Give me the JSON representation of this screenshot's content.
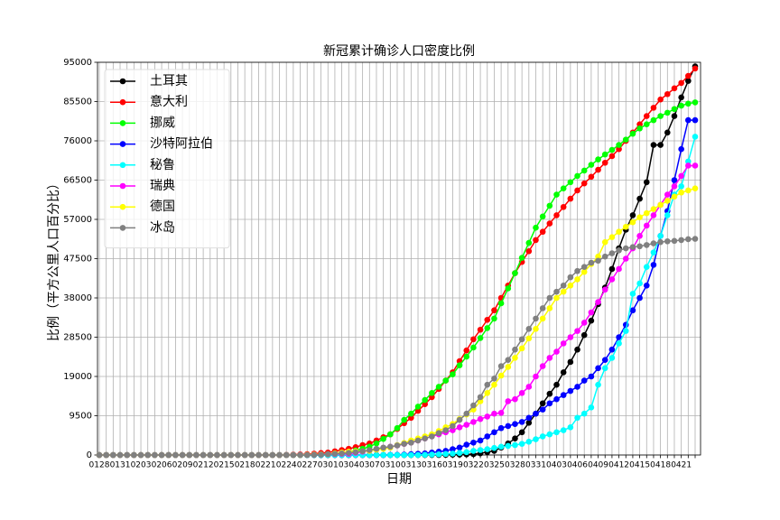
{
  "chart_data": {
    "type": "line",
    "title": "新冠累计确诊人口密度比例",
    "x_label": "日期",
    "y_label": "比例（平方公里人口百分比）",
    "categories": [
      "0128",
      null,
      null,
      "0131",
      null,
      null,
      "0203",
      null,
      null,
      "0206",
      null,
      null,
      "0209",
      null,
      null,
      "0212",
      null,
      null,
      "0215",
      null,
      null,
      "0218",
      null,
      null,
      "0221",
      null,
      null,
      "0224",
      null,
      null,
      "0227",
      null,
      null,
      "0301",
      null,
      null,
      "0304",
      null,
      null,
      "0307",
      null,
      null,
      "0310",
      null,
      null,
      "0313",
      null,
      null,
      "0316",
      null,
      null,
      "0319",
      null,
      null,
      "0322",
      null,
      null,
      "0325",
      null,
      null,
      "0328",
      null,
      null,
      "0331",
      null,
      null,
      "0403",
      null,
      null,
      "0406",
      null,
      null,
      "0409",
      null,
      null,
      "0412",
      null,
      null,
      "0415",
      null,
      null,
      "0418",
      null,
      null,
      "0421",
      null,
      null
    ],
    "ylim": [
      0,
      95000
    ],
    "yticks": [
      0,
      9500,
      19000,
      28500,
      38000,
      47500,
      57000,
      66500,
      76000,
      85500,
      95000
    ],
    "grid": true,
    "legend": "upper left",
    "series": [
      {
        "name": "土耳其",
        "color": "#000000",
        "values": [
          0,
          0,
          0,
          0,
          0,
          0,
          0,
          0,
          0,
          0,
          0,
          0,
          0,
          0,
          0,
          0,
          0,
          0,
          0,
          0,
          0,
          0,
          0,
          0,
          0,
          0,
          0,
          0,
          0,
          0,
          0,
          0,
          0,
          0,
          0,
          0,
          0,
          0,
          0,
          0,
          0,
          0,
          0,
          0,
          0,
          0,
          0,
          0,
          20,
          30,
          50,
          80,
          100,
          150,
          200,
          400,
          700,
          1000,
          1800,
          2800,
          4000,
          5500,
          7800,
          10000,
          12500,
          14800,
          17000,
          20000,
          22500,
          25500,
          29000,
          32500,
          36500,
          40500,
          45000,
          50000,
          54500,
          58000,
          62000,
          66000,
          75000,
          75000,
          78000,
          82000,
          86500,
          90500,
          94000
        ]
      },
      {
        "name": "意大利",
        "color": "#ff0000",
        "values": [
          0,
          0,
          0,
          0,
          0,
          0,
          0,
          0,
          0,
          0,
          0,
          0,
          0,
          0,
          0,
          0,
          0,
          0,
          0,
          0,
          0,
          0,
          0,
          0,
          0,
          0,
          0,
          50,
          100,
          150,
          200,
          330,
          470,
          600,
          900,
          1200,
          1500,
          1900,
          2400,
          2800,
          3500,
          4300,
          5000,
          6300,
          7700,
          9000,
          10700,
          12300,
          14000,
          16000,
          18000,
          20000,
          22700,
          25300,
          28000,
          30300,
          32700,
          35000,
          38000,
          41000,
          44000,
          46700,
          49300,
          52000,
          54000,
          56000,
          58000,
          60000,
          62000,
          64000,
          65700,
          67300,
          69000,
          70700,
          72300,
          74000,
          76000,
          78000,
          80000,
          82000,
          84000,
          86000,
          87300,
          88700,
          90000,
          91700,
          93500
        ]
      },
      {
        "name": "挪威",
        "color": "#00ff00",
        "values": [
          0,
          0,
          0,
          0,
          0,
          0,
          0,
          0,
          0,
          0,
          0,
          0,
          0,
          0,
          0,
          0,
          0,
          0,
          0,
          0,
          0,
          0,
          0,
          0,
          0,
          0,
          0,
          0,
          0,
          0,
          0,
          30,
          60,
          100,
          300,
          500,
          700,
          1100,
          1500,
          2000,
          2800,
          3900,
          5000,
          6500,
          8500,
          10000,
          11700,
          13300,
          15000,
          16500,
          18000,
          19500,
          21700,
          23800,
          26000,
          28300,
          30700,
          33000,
          36700,
          40300,
          44000,
          47700,
          51300,
          55000,
          57700,
          60300,
          63000,
          64500,
          66000,
          67500,
          68800,
          70200,
          71500,
          72700,
          73800,
          75000,
          76300,
          77700,
          79000,
          80000,
          81000,
          82000,
          82800,
          83700,
          84500,
          85000,
          85300
        ]
      },
      {
        "name": "沙特阿拉伯",
        "color": "#0000ff",
        "values": [
          0,
          0,
          0,
          0,
          0,
          0,
          0,
          0,
          0,
          0,
          0,
          0,
          0,
          0,
          0,
          0,
          0,
          0,
          0,
          0,
          0,
          0,
          0,
          0,
          0,
          0,
          0,
          0,
          0,
          0,
          0,
          0,
          0,
          0,
          0,
          0,
          0,
          0,
          0,
          0,
          0,
          0,
          30,
          50,
          100,
          200,
          300,
          400,
          600,
          800,
          1000,
          1400,
          1800,
          2500,
          3000,
          3500,
          4500,
          5500,
          6500,
          7000,
          7500,
          8000,
          9000,
          10000,
          11000,
          12500,
          13500,
          14500,
          15500,
          16500,
          18000,
          19000,
          21000,
          23000,
          25500,
          28500,
          31500,
          35000,
          38000,
          41000,
          46000,
          53000,
          59000,
          66500,
          74000,
          81000,
          81000
        ]
      },
      {
        "name": "秘鲁",
        "color": "#00ffff",
        "values": [
          0,
          0,
          0,
          0,
          0,
          0,
          0,
          0,
          0,
          0,
          0,
          0,
          0,
          0,
          0,
          0,
          0,
          0,
          0,
          0,
          0,
          0,
          0,
          0,
          0,
          0,
          0,
          0,
          0,
          0,
          0,
          0,
          0,
          0,
          0,
          0,
          0,
          0,
          0,
          0,
          0,
          0,
          0,
          0,
          0,
          0,
          0,
          50,
          100,
          150,
          250,
          350,
          500,
          700,
          1000,
          1200,
          1400,
          1700,
          2000,
          2200,
          2400,
          2700,
          3200,
          3800,
          4500,
          5000,
          5500,
          6000,
          6700,
          9000,
          10000,
          11500,
          17000,
          21000,
          23500,
          27000,
          30000,
          39000,
          41500,
          45500,
          49000,
          53000,
          58000,
          63000,
          65000,
          71000,
          77000
        ]
      },
      {
        "name": "瑞典",
        "color": "#ff00ff",
        "values": [
          0,
          0,
          0,
          0,
          0,
          0,
          0,
          0,
          0,
          0,
          0,
          0,
          0,
          0,
          0,
          0,
          0,
          0,
          0,
          0,
          0,
          0,
          0,
          0,
          0,
          0,
          0,
          0,
          0,
          20,
          50,
          100,
          150,
          200,
          250,
          280,
          300,
          550,
          800,
          1000,
          1300,
          1700,
          2000,
          2300,
          2700,
          3000,
          3500,
          4000,
          4500,
          5000,
          5500,
          6000,
          6700,
          7300,
          8000,
          8700,
          9300,
          10000,
          10200,
          13000,
          13500,
          15000,
          16500,
          19000,
          21500,
          23500,
          25000,
          27000,
          28500,
          30000,
          32000,
          34500,
          37000,
          40000,
          42500,
          45000,
          47500,
          50000,
          53000,
          55500,
          58000,
          60500,
          63000,
          65000,
          67500,
          70000,
          70000
        ]
      },
      {
        "name": "德国",
        "color": "#ffff00",
        "values": [
          0,
          0,
          0,
          0,
          0,
          0,
          0,
          0,
          0,
          0,
          0,
          0,
          0,
          0,
          0,
          0,
          0,
          0,
          0,
          0,
          0,
          0,
          0,
          0,
          0,
          0,
          0,
          0,
          0,
          0,
          50,
          100,
          150,
          200,
          400,
          600,
          800,
          900,
          950,
          1000,
          1300,
          1500,
          1800,
          2400,
          2900,
          3500,
          4000,
          4500,
          5000,
          5800,
          6700,
          7500,
          8700,
          9800,
          11000,
          13000,
          15000,
          17000,
          19200,
          21300,
          23500,
          25800,
          28200,
          30500,
          33000,
          35500,
          38000,
          39500,
          41000,
          42500,
          44300,
          46200,
          48000,
          51500,
          52700,
          54000,
          55200,
          56300,
          57500,
          58500,
          59500,
          60500,
          61500,
          62500,
          63500,
          64000,
          64500
        ]
      },
      {
        "name": "冰岛",
        "color": "#808080",
        "values": [
          0,
          0,
          0,
          0,
          0,
          0,
          0,
          0,
          0,
          0,
          0,
          0,
          0,
          0,
          0,
          0,
          0,
          0,
          0,
          0,
          0,
          0,
          0,
          0,
          0,
          0,
          0,
          0,
          0,
          0,
          0,
          50,
          100,
          200,
          300,
          400,
          500,
          700,
          950,
          1200,
          1500,
          1800,
          2000,
          2300,
          2700,
          3000,
          3500,
          4000,
          4500,
          5300,
          6000,
          7000,
          8500,
          10000,
          12000,
          14000,
          17000,
          18500,
          21500,
          23000,
          25500,
          28000,
          30500,
          33000,
          35500,
          38000,
          39500,
          41000,
          43000,
          44500,
          45500,
          46500,
          47000,
          48000,
          48800,
          49500,
          50000,
          50300,
          50500,
          50800,
          51200,
          51500,
          51700,
          51800,
          52000,
          52200,
          52300
        ]
      }
    ]
  }
}
